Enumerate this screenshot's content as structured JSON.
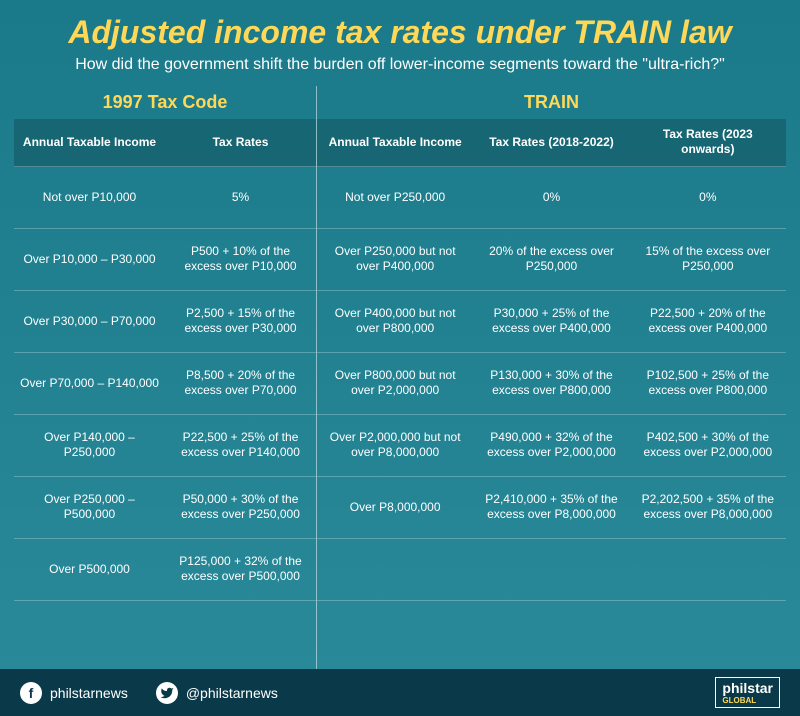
{
  "title": "Adjusted income tax rates under TRAIN law",
  "subtitle": "How did the government shift the burden off lower-income segments toward the \"ultra-rich?\"",
  "colors": {
    "background_top": "#1a7a8a",
    "background_bottom": "#2a8a9a",
    "accent": "#ffd857",
    "text": "#ffffff",
    "footer_bg": "#0a3a4a"
  },
  "left": {
    "header": "1997 Tax Code",
    "columns": [
      "Annual Taxable Income",
      "Tax Rates"
    ],
    "rows": [
      [
        "Not over P10,000",
        "5%"
      ],
      [
        "Over P10,000 – P30,000",
        "P500 + 10% of the excess over P10,000"
      ],
      [
        "Over P30,000 – P70,000",
        "P2,500 + 15% of the excess over P30,000"
      ],
      [
        "Over P70,000 – P140,000",
        "P8,500 + 20% of the excess over P70,000"
      ],
      [
        "Over P140,000 – P250,000",
        "P22,500 + 25% of the excess over P140,000"
      ],
      [
        "Over P250,000 – P500,000",
        "P50,000 + 30% of the excess over P250,000"
      ],
      [
        "Over P500,000",
        "P125,000 + 32% of the excess over P500,000"
      ]
    ]
  },
  "right": {
    "header": "TRAIN",
    "columns": [
      "Annual Taxable Income",
      "Tax Rates (2018-2022)",
      "Tax Rates (2023 onwards)"
    ],
    "rows": [
      [
        "Not over P250,000",
        "0%",
        "0%"
      ],
      [
        "Over P250,000 but not over P400,000",
        "20% of the excess over P250,000",
        "15% of the excess over P250,000"
      ],
      [
        "Over P400,000 but not over P800,000",
        "P30,000 + 25% of the excess over P400,000",
        "P22,500 + 20% of the excess over P400,000"
      ],
      [
        "Over P800,000 but not over P2,000,000",
        "P130,000 + 30% of the excess over P800,000",
        "P102,500 + 25% of the excess over P800,000"
      ],
      [
        "Over P2,000,000 but not over P8,000,000",
        "P490,000 + 32% of the excess over P2,000,000",
        "P402,500 + 30% of the excess over P2,000,000"
      ],
      [
        "Over P8,000,000",
        "P2,410,000 + 35% of the excess over P8,000,000",
        "P2,202,500 + 35% of the excess over P8,000,000"
      ],
      [
        "",
        "",
        ""
      ]
    ]
  },
  "footer": {
    "fb": "philstarnews",
    "tw": "@philstarnews",
    "logo": "philstar",
    "logo_sub": "GLOBAL"
  }
}
